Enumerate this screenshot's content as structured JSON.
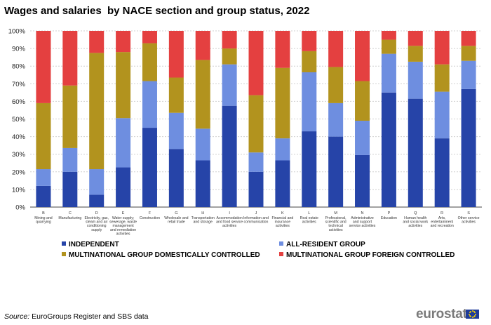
{
  "title": "Wages and salaries  by NACE section and group status, 2022",
  "source_label": "Source:",
  "source_text": " EuroGroups Register and SBS data",
  "logo_text": "eurostat",
  "colors": {
    "independent": "#2644a8",
    "all_resident": "#6e8ee0",
    "domestic": "#b2931e",
    "foreign": "#e44040",
    "grid": "#d0d0d0",
    "axis": "#444444"
  },
  "chart_data": {
    "type": "bar",
    "stacked": true,
    "percent": true,
    "title": "Wages and salaries  by NACE section and group status, 2022",
    "ylim": [
      0,
      100
    ],
    "yticks": [
      "0%",
      "10%",
      "20%",
      "30%",
      "40%",
      "50%",
      "60%",
      "70%",
      "80%",
      "90%",
      "100%"
    ],
    "grid": "horizontal",
    "legend_position": "bottom",
    "categories": [
      {
        "code": "B",
        "lines": [
          "Mining and",
          "quarrying"
        ]
      },
      {
        "code": "C",
        "lines": [
          "Manufacturing"
        ]
      },
      {
        "code": "D",
        "lines": [
          "Electricity, gas,",
          "steam and air",
          "conditioning",
          "supply"
        ]
      },
      {
        "code": "E",
        "lines": [
          "Water supply;",
          "sewerage, waste",
          "management",
          "and remediation",
          "activities"
        ]
      },
      {
        "code": "F",
        "lines": [
          "Construction"
        ]
      },
      {
        "code": "G",
        "lines": [
          "Wholesale and",
          "retail trade"
        ]
      },
      {
        "code": "H",
        "lines": [
          "Transportation",
          "and storage"
        ]
      },
      {
        "code": "I",
        "lines": [
          "Accommodation",
          "and food service",
          "activities"
        ]
      },
      {
        "code": "J",
        "lines": [
          "Information and",
          "communication"
        ]
      },
      {
        "code": "K",
        "lines": [
          "Financial and",
          "insurance",
          "activities"
        ]
      },
      {
        "code": "L",
        "lines": [
          "Real estate",
          "activities"
        ]
      },
      {
        "code": "M",
        "lines": [
          "Professional,",
          "scientific and",
          "technical",
          "activities"
        ]
      },
      {
        "code": "N",
        "lines": [
          "Administrative",
          "and support",
          "service activities"
        ]
      },
      {
        "code": "P",
        "lines": [
          "Education"
        ]
      },
      {
        "code": "Q",
        "lines": [
          "Human health",
          "and social work",
          "activities"
        ]
      },
      {
        "code": "R",
        "lines": [
          "Arts,",
          "entertainment",
          "and recreation"
        ]
      },
      {
        "code": "S",
        "lines": [
          "Other service",
          "activities"
        ]
      }
    ],
    "series": [
      {
        "name": "INDEPENDENT",
        "key": "independent",
        "values": [
          12,
          20,
          7,
          22.5,
          45,
          33,
          26.5,
          57.5,
          20,
          26.5,
          43,
          40,
          29.5,
          65,
          61.5,
          39,
          67
        ]
      },
      {
        "name": "ALL-RESIDENT GROUP",
        "key": "all_resident",
        "values": [
          9.5,
          13.5,
          14.5,
          28,
          26.5,
          20.5,
          18,
          23.5,
          11,
          12.5,
          33.5,
          19,
          19.5,
          22,
          21,
          26.5,
          16
        ]
      },
      {
        "name": "MULTINATIONAL GROUP DOMESTICALLY CONTROLLED",
        "key": "domestic",
        "values": [
          37.5,
          35.5,
          66,
          37.5,
          21.5,
          20,
          39,
          9,
          32.5,
          40,
          12,
          20.5,
          22.5,
          8,
          9,
          15.5,
          8.5
        ]
      },
      {
        "name": "MULTINATIONAL GROUP FOREIGN CONTROLLED",
        "key": "foreign",
        "values": [
          41,
          31,
          12.5,
          12,
          7,
          26.5,
          16.5,
          10,
          36.5,
          21,
          11.5,
          20.5,
          28.5,
          5,
          8.5,
          19,
          8.5
        ]
      }
    ]
  }
}
